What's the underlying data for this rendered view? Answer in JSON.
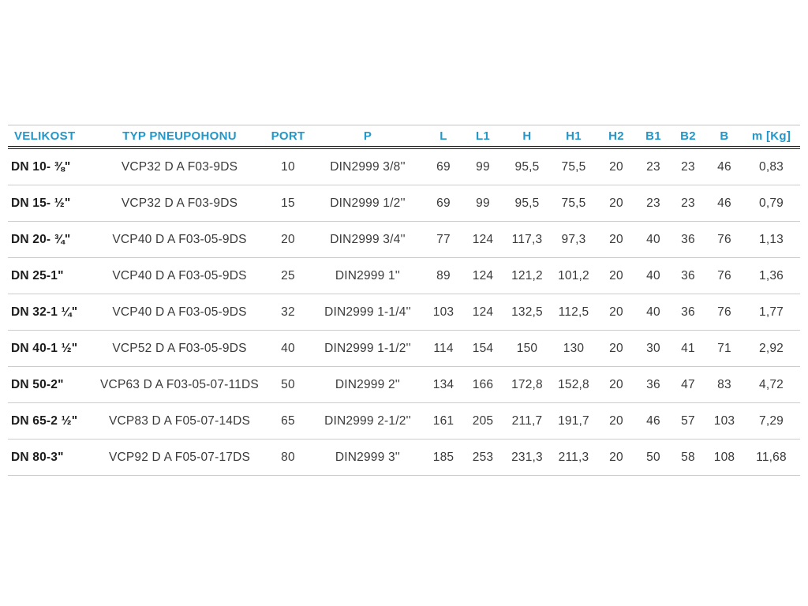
{
  "page": {
    "background": "#ffffff"
  },
  "colors": {
    "header_text": "#2397c9",
    "header_top_border": "#c4c4c4",
    "header_bottom_border": "#1b1b1b",
    "row_divider": "#cccccc",
    "body_text": "#3a3a3a",
    "row_label_text": "#1c1c1c"
  },
  "table": {
    "columns": [
      {
        "key": "velikost",
        "label": "VELIKOST"
      },
      {
        "key": "typ",
        "label": "TYP PNEUPOHONU"
      },
      {
        "key": "port",
        "label": "PORT"
      },
      {
        "key": "p",
        "label": "P"
      },
      {
        "key": "l",
        "label": "L"
      },
      {
        "key": "l1",
        "label": "L1"
      },
      {
        "key": "h",
        "label": "H"
      },
      {
        "key": "h1",
        "label": "H1"
      },
      {
        "key": "h2",
        "label": "H2"
      },
      {
        "key": "b1",
        "label": "B1"
      },
      {
        "key": "b2",
        "label": "B2"
      },
      {
        "key": "b",
        "label": "B"
      },
      {
        "key": "m",
        "label": "m [Kg]"
      }
    ],
    "rows": [
      [
        "DN 10- ⅜\"",
        "VCP32 D A F03-9DS",
        "10",
        "DIN2999 3/8''",
        "69",
        "99",
        "95,5",
        "75,5",
        "20",
        "23",
        "23",
        "46",
        "0,83"
      ],
      [
        "DN 15- ½\"",
        "VCP32 D A F03-9DS",
        "15",
        "DIN2999 1/2''",
        "69",
        "99",
        "95,5",
        "75,5",
        "20",
        "23",
        "23",
        "46",
        "0,79"
      ],
      [
        "DN 20- ¾\"",
        "VCP40 D A F03-05-9DS",
        "20",
        "DIN2999 3/4''",
        "77",
        "124",
        "117,3",
        "97,3",
        "20",
        "40",
        "36",
        "76",
        "1,13"
      ],
      [
        "DN 25-1\"",
        "VCP40 D A F03-05-9DS",
        "25",
        "DIN2999 1''",
        "89",
        "124",
        "121,2",
        "101,2",
        "20",
        "40",
        "36",
        "76",
        "1,36"
      ],
      [
        "DN 32-1 ¼\"",
        "VCP40 D A F03-05-9DS",
        "32",
        "DIN2999 1-1/4''",
        "103",
        "124",
        "132,5",
        "112,5",
        "20",
        "40",
        "36",
        "76",
        "1,77"
      ],
      [
        "DN 40-1 ½\"",
        "VCP52 D A F03-05-9DS",
        "40",
        "DIN2999 1-1/2''",
        "114",
        "154",
        "150",
        "130",
        "20",
        "30",
        "41",
        "71",
        "2,92"
      ],
      [
        "DN 50-2\"",
        "VCP63 D A F03-05-07-11DS",
        "50",
        "DIN2999 2''",
        "134",
        "166",
        "172,8",
        "152,8",
        "20",
        "36",
        "47",
        "83",
        "4,72"
      ],
      [
        "DN 65-2 ½\"",
        "VCP83 D A F05-07-14DS",
        "65",
        "DIN2999 2-1/2''",
        "161",
        "205",
        "211,7",
        "191,7",
        "20",
        "46",
        "57",
        "103",
        "7,29"
      ],
      [
        "DN 80-3\"",
        "VCP92 D A F05-07-17DS",
        "80",
        "DIN2999 3''",
        "185",
        "253",
        "231,3",
        "211,3",
        "20",
        "50",
        "58",
        "108",
        "11,68"
      ]
    ]
  }
}
